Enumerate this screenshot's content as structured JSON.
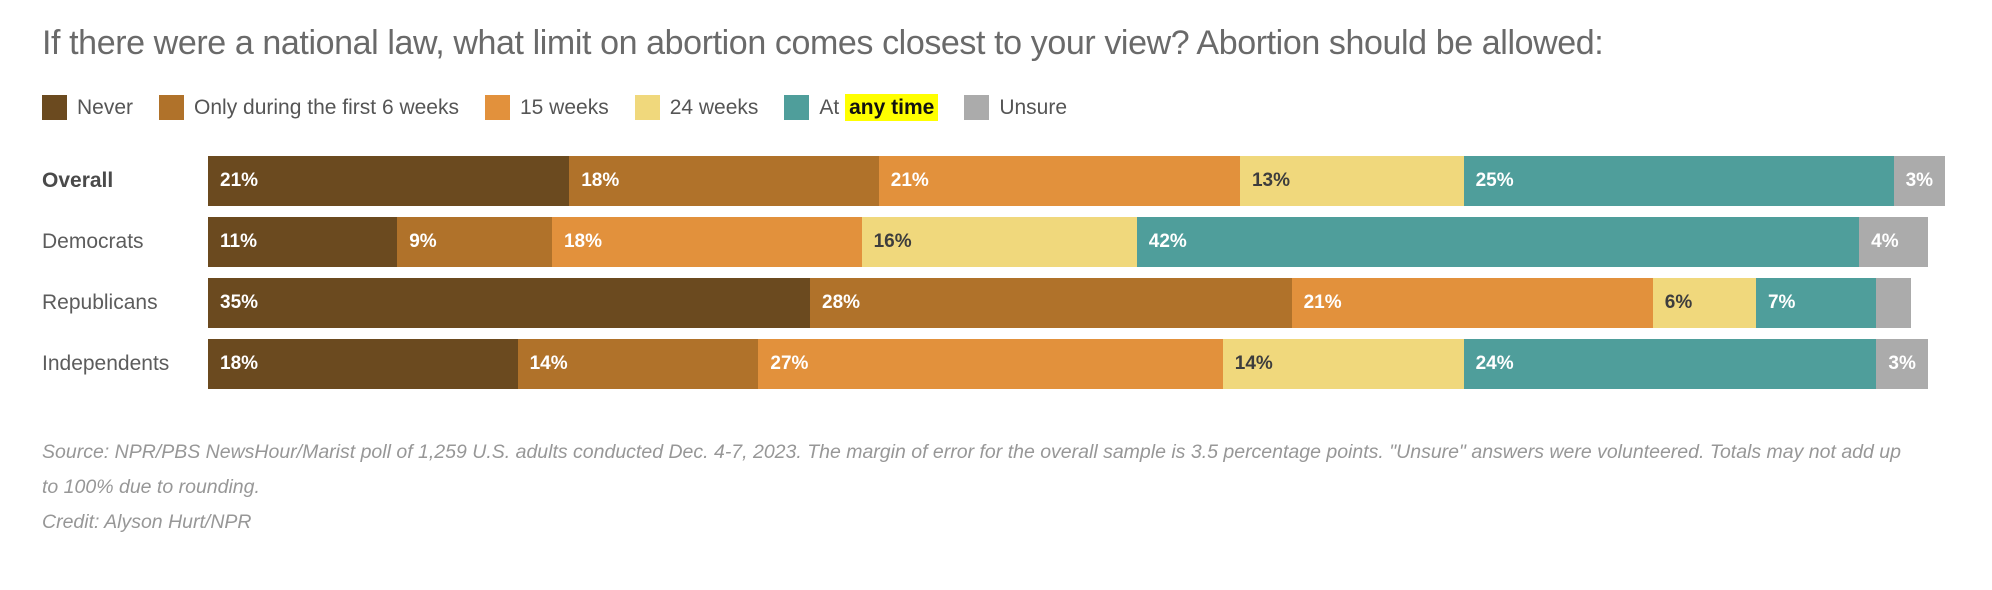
{
  "title": "If there were a national law, what limit on abortion comes closest to your view? Abortion should be allowed:",
  "chart_data": {
    "type": "bar",
    "subtype": "horizontal-stacked",
    "unit": "%",
    "legend_position": "top",
    "series": [
      {
        "name": "Never",
        "color": "#6b4a1f",
        "label_color": "#ffffff"
      },
      {
        "name": "Only during the first 6 weeks",
        "color": "#b0722a",
        "label_color": "#ffffff"
      },
      {
        "name": "15 weeks",
        "color": "#e2913c",
        "label_color": "#ffffff"
      },
      {
        "name": "24 weeks",
        "color": "#f0d87c",
        "label_color": "#3d3d3d"
      },
      {
        "name": "At any time",
        "color": "#4f9e9b",
        "label_color": "#ffffff",
        "highlight_text": "any time",
        "highlight_bg": "#ffff00"
      },
      {
        "name": "Unsure",
        "color": "#ababab",
        "label_color": "#ffffff"
      }
    ],
    "categories": [
      "Overall",
      "Democrats",
      "Republicans",
      "Independents"
    ],
    "rows": [
      {
        "label": "Overall",
        "bold": true,
        "values": [
          21,
          18,
          21,
          13,
          25,
          3
        ],
        "labels": [
          "21%",
          "18%",
          "21%",
          "13%",
          "25%",
          "3%"
        ]
      },
      {
        "label": "Democrats",
        "bold": false,
        "values": [
          11,
          9,
          18,
          16,
          42,
          4
        ],
        "labels": [
          "11%",
          "9%",
          "18%",
          "16%",
          "42%",
          "4%"
        ]
      },
      {
        "label": "Republicans",
        "bold": false,
        "values": [
          35,
          28,
          21,
          6,
          7,
          2
        ],
        "labels": [
          "35%",
          "28%",
          "21%",
          "6%",
          "7%",
          ""
        ]
      },
      {
        "label": "Independents",
        "bold": false,
        "values": [
          18,
          14,
          27,
          14,
          24,
          3
        ],
        "labels": [
          "18%",
          "14%",
          "27%",
          "14%",
          "24%",
          "3%"
        ]
      }
    ]
  },
  "footer": {
    "source": "Source: NPR/PBS NewsHour/Marist poll of 1,259 U.S. adults conducted Dec. 4-7, 2023. The margin of error for the overall sample is 3.5 percentage points. \"Unsure\" answers were volunteered. Totals may not add up to 100% due to rounding.",
    "credit": "Credit: Alyson Hurt/NPR"
  }
}
